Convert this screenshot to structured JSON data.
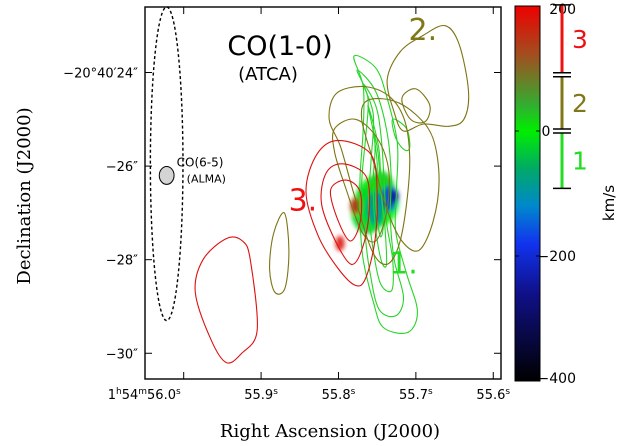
{
  "chart_data": {
    "type": "contour",
    "title": "CO(1-0)",
    "subtitle": "(ATCA)",
    "xlabel": "Right Ascension (J2000)",
    "ylabel": "Declination (J2000)",
    "x_ticks": [
      {
        "label_pre": "1",
        "sup1": "h",
        "mid": "54",
        "sup2": "m",
        "main": "56.0",
        "sup3": "s",
        "x": 56.0
      },
      {
        "label_pre": "",
        "sup1": "",
        "mid": "",
        "sup2": "",
        "main": "55.9",
        "sup3": "s",
        "x": 55.9
      },
      {
        "label_pre": "",
        "sup1": "",
        "mid": "",
        "sup2": "",
        "main": "55.8",
        "sup3": "s",
        "x": 55.8
      },
      {
        "label_pre": "",
        "sup1": "",
        "mid": "",
        "sup2": "",
        "main": "55.7",
        "sup3": "s",
        "x": 55.7
      },
      {
        "label_pre": "",
        "sup1": "",
        "mid": "",
        "sup2": "",
        "main": "55.6",
        "sup3": "s",
        "x": 55.6
      }
    ],
    "y_ticks": [
      {
        "label": "−20°40′24″",
        "y": -24
      },
      {
        "label": "−26″",
        "y": -26
      },
      {
        "label": "−28″",
        "y": -28
      },
      {
        "label": "−30″",
        "y": -30
      }
    ],
    "xlim": [
      56.05,
      55.59
    ],
    "ylim": [
      -30.55,
      -22.6
    ],
    "beams": {
      "atca_ellipse": {
        "cx": 56.022,
        "cy": -25.95,
        "rx": 0.021,
        "ry": 3.35
      },
      "alma_beam": {
        "cx": 56.022,
        "cy": -26.2,
        "rx": 0.0095,
        "ry": 0.19,
        "label": "CO(6-5)",
        "sublabel": "(ALMA)"
      }
    },
    "components": [
      {
        "label": "1.",
        "color": "#22dd22",
        "x": 55.716,
        "y": -28.3
      },
      {
        "label": "2.",
        "color": "#807818",
        "x": 55.691,
        "y": -23.3
      },
      {
        "label": "3.",
        "color": "#ee1111",
        "x": 55.846,
        "y": -26.95
      }
    ],
    "colorbar": {
      "label": "km/s",
      "range": [
        -400,
        200
      ],
      "ticks": [
        200,
        0,
        -200,
        -400
      ],
      "tick_labels": [
        "200",
        "0",
        "−200",
        "−400"
      ],
      "stops": [
        {
          "v": 200,
          "color": "#ee0000"
        },
        {
          "v": 120,
          "color": "#a05020"
        },
        {
          "v": 40,
          "color": "#30b030"
        },
        {
          "v": 0,
          "color": "#00ee00"
        },
        {
          "v": -60,
          "color": "#00aa66"
        },
        {
          "v": -120,
          "color": "#0088cc"
        },
        {
          "v": -180,
          "color": "#1133ee"
        },
        {
          "v": -260,
          "color": "#101088"
        },
        {
          "v": -400,
          "color": "#000000"
        }
      ],
      "ranges": [
        {
          "label": "3",
          "color": "#ee1111",
          "vmin": 90,
          "vmax": 205
        },
        {
          "label": "2",
          "color": "#807818",
          "vmin": 0,
          "vmax": 90
        },
        {
          "label": "1",
          "color": "#22dd22",
          "vmin": -95,
          "vmax": 0
        }
      ]
    },
    "contours": {
      "red": {
        "color": "#dd1111",
        "paths": [
          [
            [
              55.914,
              -28.0
            ],
            [
              55.905,
              -29.5
            ],
            [
              55.925,
              -30.0
            ],
            [
              55.945,
              -30.2
            ],
            [
              55.965,
              -29.7
            ],
            [
              55.985,
              -28.7
            ],
            [
              55.975,
              -28.0
            ],
            [
              55.945,
              -27.55
            ],
            [
              55.924,
              -27.6
            ]
          ],
          [
            [
              55.8,
              -25.45
            ],
            [
              55.758,
              -25.75
            ],
            [
              55.75,
              -26.6
            ],
            [
              55.753,
              -27.6
            ],
            [
              55.765,
              -28.4
            ],
            [
              55.778,
              -28.55
            ],
            [
              55.8,
              -28.2
            ],
            [
              55.826,
              -27.5
            ],
            [
              55.842,
              -26.55
            ],
            [
              55.828,
              -25.75
            ]
          ],
          [
            [
              55.795,
              -25.95
            ],
            [
              55.765,
              -26.2
            ],
            [
              55.76,
              -26.9
            ],
            [
              55.768,
              -27.7
            ],
            [
              55.783,
              -28.1
            ],
            [
              55.804,
              -27.6
            ],
            [
              55.822,
              -26.8
            ],
            [
              55.816,
              -26.15
            ]
          ],
          [
            [
              55.79,
              -26.3
            ],
            [
              55.772,
              -26.55
            ],
            [
              55.772,
              -27.2
            ],
            [
              55.785,
              -27.6
            ],
            [
              55.802,
              -27.1
            ],
            [
              55.81,
              -26.5
            ]
          ]
        ]
      },
      "olive": {
        "color": "#7d7512",
        "paths": [
          [
            [
              55.72,
              -23.55
            ],
            [
              55.69,
              -23.2
            ],
            [
              55.662,
              -23.0
            ],
            [
              55.644,
              -23.4
            ],
            [
              55.632,
              -24.4
            ],
            [
              55.638,
              -25.0
            ],
            [
              55.658,
              -25.15
            ],
            [
              55.69,
              -25.1
            ],
            [
              55.716,
              -25.25
            ],
            [
              55.728,
              -24.85
            ],
            [
              55.737,
              -24.15
            ]
          ],
          [
            [
              55.718,
              -24.55
            ],
            [
              55.7,
              -24.35
            ],
            [
              55.682,
              -24.7
            ],
            [
              55.688,
              -25.05
            ],
            [
              55.707,
              -25.0
            ]
          ],
          [
            [
              55.763,
              -24.6
            ],
            [
              55.73,
              -24.6
            ],
            [
              55.7,
              -24.9
            ],
            [
              55.678,
              -25.4
            ],
            [
              55.67,
              -26.3
            ],
            [
              55.678,
              -27.2
            ],
            [
              55.696,
              -27.8
            ],
            [
              55.718,
              -27.6
            ],
            [
              55.738,
              -26.9
            ],
            [
              55.755,
              -25.9
            ],
            [
              55.77,
              -25.0
            ]
          ],
          [
            [
              55.803,
              -24.45
            ],
            [
              55.768,
              -24.3
            ],
            [
              55.735,
              -24.5
            ],
            [
              55.715,
              -25.0
            ],
            [
              55.708,
              -25.8
            ],
            [
              55.712,
              -26.8
            ],
            [
              55.722,
              -27.7
            ],
            [
              55.738,
              -28.1
            ],
            [
              55.757,
              -27.8
            ],
            [
              55.78,
              -26.6
            ],
            [
              55.797,
              -25.6
            ],
            [
              55.812,
              -25.0
            ]
          ],
          [
            [
              55.805,
              -25.2
            ],
            [
              55.778,
              -25.0
            ],
            [
              55.75,
              -25.4
            ],
            [
              55.735,
              -26.1
            ],
            [
              55.738,
              -27.0
            ],
            [
              55.752,
              -27.6
            ],
            [
              55.77,
              -27.4
            ],
            [
              55.79,
              -26.5
            ],
            [
              55.805,
              -25.7
            ]
          ],
          [
            [
              55.87,
              -27.0
            ],
            [
              55.884,
              -27.45
            ],
            [
              55.889,
              -28.2
            ],
            [
              55.882,
              -28.7
            ],
            [
              55.869,
              -28.6
            ],
            [
              55.864,
              -27.8
            ]
          ]
        ]
      },
      "green": {
        "color": "#28d428",
        "paths": [
          [
            [
              55.78,
              -23.65
            ],
            [
              55.768,
              -24.3
            ],
            [
              55.768,
              -25.2
            ],
            [
              55.772,
              -26.2
            ],
            [
              55.772,
              -27.2
            ],
            [
              55.768,
              -28.0
            ],
            [
              55.755,
              -28.9
            ],
            [
              55.742,
              -29.45
            ],
            [
              55.71,
              -29.55
            ],
            [
              55.698,
              -29.1
            ],
            [
              55.712,
              -28.3
            ],
            [
              55.726,
              -27.4
            ],
            [
              55.725,
              -26.5
            ],
            [
              55.724,
              -25.5
            ],
            [
              55.738,
              -24.5
            ],
            [
              55.752,
              -23.9
            ]
          ],
          [
            [
              55.776,
              -23.95
            ],
            [
              55.762,
              -24.55
            ],
            [
              55.765,
              -25.4
            ],
            [
              55.77,
              -26.4
            ],
            [
              55.766,
              -27.4
            ],
            [
              55.76,
              -28.2
            ],
            [
              55.748,
              -29.05
            ],
            [
              55.726,
              -29.2
            ],
            [
              55.716,
              -28.8
            ],
            [
              55.728,
              -28.0
            ],
            [
              55.733,
              -27.1
            ],
            [
              55.732,
              -26.2
            ],
            [
              55.737,
              -25.3
            ],
            [
              55.752,
              -24.4
            ]
          ],
          [
            [
              55.768,
              -24.25
            ],
            [
              55.755,
              -24.9
            ],
            [
              55.758,
              -25.9
            ],
            [
              55.761,
              -26.8
            ],
            [
              55.756,
              -27.7
            ],
            [
              55.746,
              -28.5
            ],
            [
              55.731,
              -28.65
            ],
            [
              55.73,
              -28.0
            ],
            [
              55.738,
              -27.2
            ],
            [
              55.741,
              -26.3
            ],
            [
              55.745,
              -25.35
            ],
            [
              55.752,
              -24.7
            ]
          ],
          [
            [
              55.762,
              -24.7
            ],
            [
              55.753,
              -25.5
            ],
            [
              55.755,
              -26.3
            ],
            [
              55.753,
              -27.2
            ],
            [
              55.745,
              -28.0
            ],
            [
              55.738,
              -28.1
            ],
            [
              55.74,
              -27.3
            ],
            [
              55.745,
              -26.5
            ],
            [
              55.748,
              -25.6
            ]
          ],
          [
            [
              55.755,
              -25.25
            ],
            [
              55.75,
              -25.95
            ],
            [
              55.752,
              -26.8
            ],
            [
              55.746,
              -27.5
            ],
            [
              55.742,
              -27.2
            ],
            [
              55.746,
              -26.4
            ],
            [
              55.749,
              -25.7
            ]
          ],
          [
            [
              55.73,
              -25.0
            ],
            [
              55.712,
              -25.2
            ],
            [
              55.708,
              -25.6
            ],
            [
              55.715,
              -25.65
            ],
            [
              55.726,
              -25.4
            ]
          ]
        ]
      }
    },
    "velocity_map": [
      {
        "cx": 55.75,
        "cy": -26.75,
        "rx": 0.028,
        "ry": 0.55,
        "v": 0
      },
      {
        "cx": 55.762,
        "cy": -26.95,
        "rx": 0.022,
        "ry": 0.5,
        "v": -20
      },
      {
        "cx": 55.745,
        "cy": -26.55,
        "rx": 0.018,
        "ry": 0.45,
        "v": 20
      },
      {
        "cx": 55.752,
        "cy": -26.9,
        "rx": 0.012,
        "ry": 0.35,
        "v": -90
      },
      {
        "cx": 55.735,
        "cy": -26.7,
        "rx": 0.01,
        "ry": 0.28,
        "v": -160
      },
      {
        "cx": 55.728,
        "cy": -26.65,
        "rx": 0.006,
        "ry": 0.16,
        "v": -240
      },
      {
        "cx": 55.778,
        "cy": -26.85,
        "rx": 0.007,
        "ry": 0.18,
        "v": 150
      },
      {
        "cx": 55.798,
        "cy": -27.65,
        "rx": 0.006,
        "ry": 0.16,
        "v": 180
      }
    ]
  }
}
